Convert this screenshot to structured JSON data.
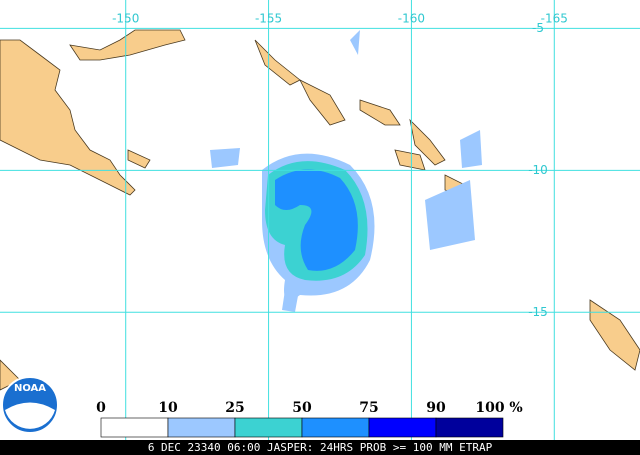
{
  "map": {
    "lon_ticks": [
      -150,
      -155,
      -160,
      -165
    ],
    "lat_ticks": [
      -5,
      -10,
      -15
    ],
    "xlim": [
      -145.6,
      -168.0
    ],
    "ylim": [
      -4.0,
      -19.5
    ],
    "grid_color": "#40e0e0"
  },
  "logo": "NOAA",
  "legend": {
    "labels": [
      0,
      10,
      25,
      50,
      75,
      90,
      100
    ],
    "unit": "%",
    "colors": [
      "#ffffff",
      "#9cc8ff",
      "#3cd2d2",
      "#1e90ff",
      "#0000ff",
      "#00009c"
    ]
  },
  "footer": "6 DEC 23340 06:00 JASPER: 24HRS PROB >= 100 MM ETRAP"
}
